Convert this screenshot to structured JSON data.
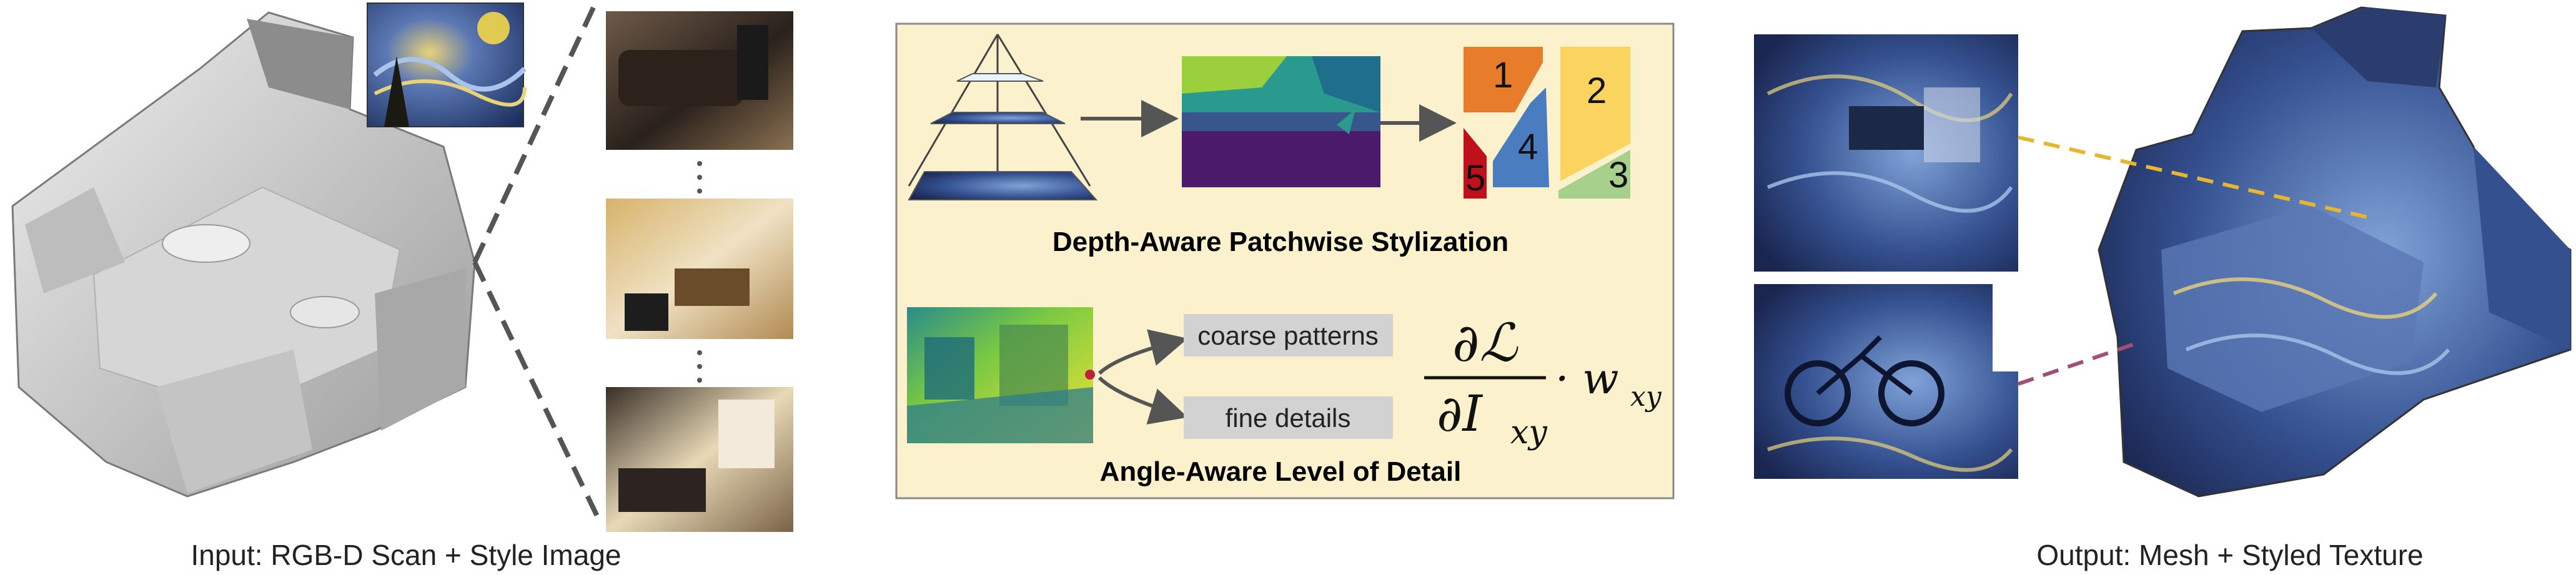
{
  "captions": {
    "input": "Input: RGB-D Scan + Style Image",
    "output": "Output: Mesh + Styled Texture",
    "depth_stage": "Depth-Aware Patchwise Stylization",
    "angle_stage": "Angle-Aware Level of Detail"
  },
  "lod_options": {
    "coarse": "coarse patterns",
    "fine": "fine details"
  },
  "patch_labels": [
    "1",
    "2",
    "3",
    "4",
    "5"
  ],
  "formula": {
    "numerator": "∂ℒ",
    "denominator": "∂I",
    "sub": "xy",
    "weight": "· w",
    "weight_sub": "xy"
  },
  "colors": {
    "panel_bg": "#fbf1cc",
    "panel_border": "#8a8a8a",
    "patch1": "#e77c2b",
    "patch2": "#fbd35f",
    "patch3": "#a8d08d",
    "patch4": "#4a7cc0",
    "patch5": "#c0101c",
    "connector_gold": "#e7b52e",
    "connector_plum": "#a14f75"
  }
}
